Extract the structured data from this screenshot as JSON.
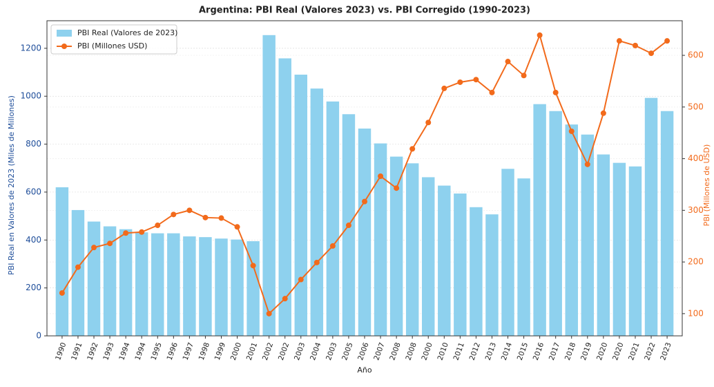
{
  "chart_data": {
    "type": "bar_line",
    "title": "Argentina: PBI Real (Valores 2023) vs. PBI Corregido (1990-2023)",
    "xlabel": "Año",
    "ylabel": "PBI Real en Valores de 2023 (Miles de Millones)",
    "y2label": "PBI (Millones de USD)",
    "categories": [
      "1990",
      "1991",
      "1992",
      "1993",
      "1994",
      "1994",
      "1995",
      "1996",
      "1997",
      "1998",
      "1999",
      "2000",
      "2001",
      "2002",
      "2002",
      "2003",
      "2004",
      "2003",
      "2005",
      "2006",
      "2007",
      "2008",
      "2008",
      "2000",
      "2010",
      "2011",
      "2012",
      "2013",
      "2014",
      "2015",
      "2016",
      "2017",
      "2018",
      "2019",
      "2020",
      "2020",
      "2021",
      "2022",
      "2023"
    ],
    "series": [
      {
        "name": "PBI Real (Valores de 2023)",
        "color": "#8ed1ee",
        "kind": "bar",
        "values": [
          620,
          525,
          477,
          457,
          445,
          432,
          428,
          428,
          415,
          412,
          406,
          402,
          395,
          1255,
          1158,
          1090,
          1032,
          978,
          925,
          865,
          803,
          748,
          720,
          662,
          627,
          594,
          537,
          507,
          697,
          657,
          967,
          938,
          882,
          840,
          757,
          722,
          707,
          993,
          938
        ]
      },
      {
        "name": "PBI (Millones USD)",
        "color": "#f26a1b",
        "kind": "line",
        "axis": "y2",
        "values": [
          140,
          190,
          228,
          236,
          256,
          258,
          271,
          292,
          300,
          286,
          285,
          268,
          193,
          100,
          129,
          166,
          199,
          231,
          271,
          317,
          366,
          343,
          419,
          470,
          536,
          548,
          553,
          528,
          588,
          561,
          639,
          528,
          453,
          389,
          488,
          628,
          619,
          604,
          628
        ]
      }
    ],
    "ylim": [
      0,
      1315
    ],
    "yticks": [
      0,
      200,
      400,
      600,
      800,
      1000,
      1200
    ],
    "y2lim": [
      57,
      667
    ],
    "y2ticks": [
      100,
      200,
      300,
      400,
      500,
      600
    ],
    "grid": true,
    "legend": "upper left"
  }
}
